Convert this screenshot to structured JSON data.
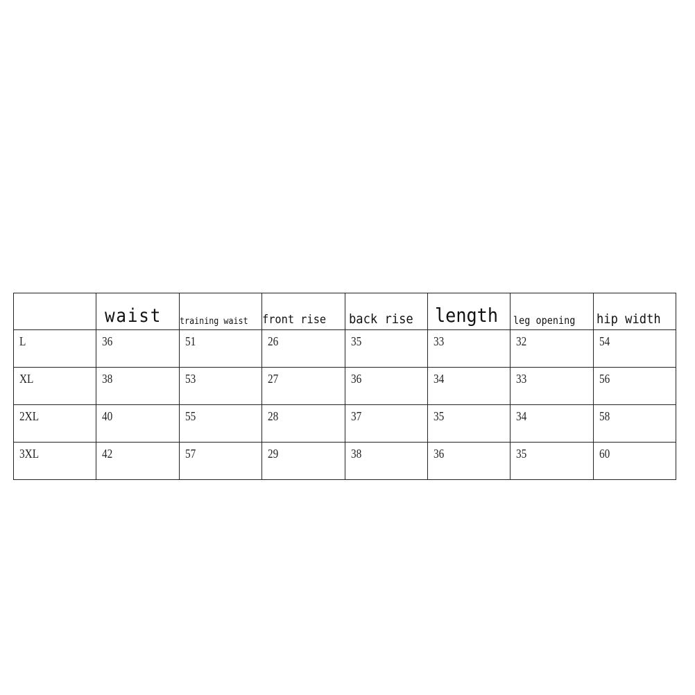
{
  "size_chart": {
    "headers": [
      "",
      "waist",
      "training waist",
      "front rise",
      "back rise",
      "length",
      "leg opening",
      "hip width"
    ],
    "rows": [
      {
        "size": "L",
        "values": [
          "36",
          "51",
          "26",
          "35",
          "33",
          "32",
          "54"
        ]
      },
      {
        "size": "XL",
        "values": [
          "38",
          "53",
          "27",
          "36",
          "34",
          "33",
          "56"
        ]
      },
      {
        "size": "2XL",
        "values": [
          "40",
          "55",
          "28",
          "37",
          "35",
          "34",
          "58"
        ]
      },
      {
        "size": "3XL",
        "values": [
          "42",
          "57",
          "29",
          "38",
          "36",
          "35",
          "60"
        ]
      }
    ]
  }
}
